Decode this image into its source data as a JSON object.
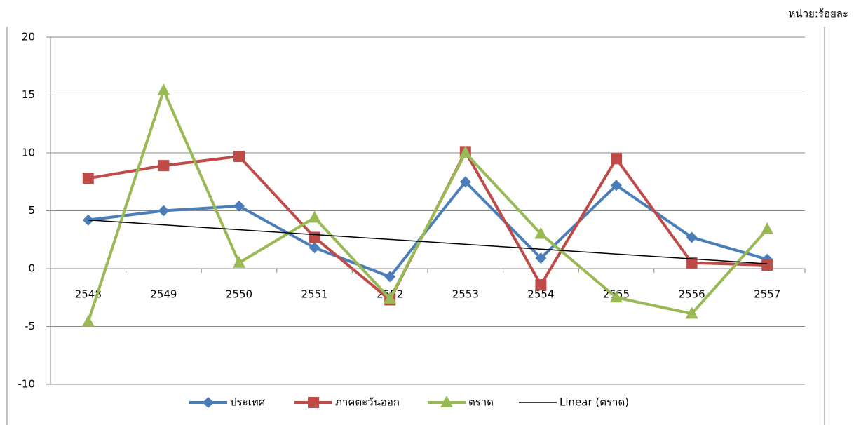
{
  "chart_data": {
    "type": "line",
    "unit_label": "หน่วย:ร้อยละ",
    "categories": [
      "2548",
      "2549",
      "2550",
      "2551",
      "2552",
      "2553",
      "2554",
      "2555",
      "2556",
      "2557"
    ],
    "series": [
      {
        "name": "ประเทศ",
        "color": "#4a7ebb",
        "marker": "diamond",
        "values": [
          4.2,
          5.0,
          5.4,
          1.8,
          -0.7,
          7.5,
          0.9,
          7.2,
          2.7,
          0.8
        ]
      },
      {
        "name": "ภาคตะวันออก",
        "color": "#be4b48",
        "marker": "square",
        "values": [
          7.8,
          8.9,
          9.7,
          2.7,
          -2.7,
          10.1,
          -1.4,
          9.5,
          0.5,
          0.3
        ]
      },
      {
        "name": "ตราด",
        "color": "#98b954",
        "marker": "triangle",
        "values": [
          -4.6,
          15.4,
          0.5,
          4.4,
          -2.6,
          10.0,
          3.0,
          -2.5,
          -3.9,
          3.4
        ]
      },
      {
        "name": "Linear (ตราด)",
        "color": "#000000",
        "marker": "none",
        "values": [
          4.2,
          3.78,
          3.36,
          2.94,
          2.52,
          2.1,
          1.68,
          1.26,
          0.84,
          0.42
        ]
      }
    ],
    "ylim": [
      -10,
      20
    ],
    "yticks": [
      -10,
      -5,
      0,
      5,
      10,
      15,
      20
    ],
    "grid": true,
    "legend": "bottom"
  }
}
